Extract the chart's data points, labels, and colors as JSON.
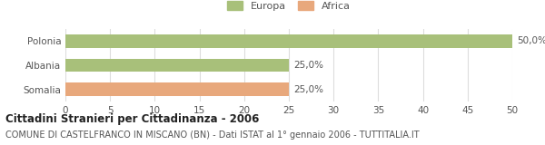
{
  "categories": [
    "Polonia",
    "Albania",
    "Somalia"
  ],
  "values": [
    50.0,
    25.0,
    25.0
  ],
  "colors": [
    "#a8c07a",
    "#a8c07a",
    "#e8a87c"
  ],
  "xlim": [
    0,
    50
  ],
  "xticks": [
    0,
    5,
    10,
    15,
    20,
    25,
    30,
    35,
    40,
    45,
    50
  ],
  "bar_height": 0.55,
  "legend_labels": [
    "Europa",
    "Africa"
  ],
  "legend_colors": [
    "#a8c07a",
    "#e8a87c"
  ],
  "title": "Cittadini Stranieri per Cittadinanza - 2006",
  "subtitle": "COMUNE DI CASTELFRANCO IN MISCANO (BN) - Dati ISTAT al 1° gennaio 2006 - TUTTITALIA.IT",
  "background_color": "#ffffff",
  "grid_color": "#dddddd",
  "title_fontsize": 8.5,
  "subtitle_fontsize": 7.0,
  "tick_fontsize": 7.5,
  "bar_label_fontsize": 7.5,
  "legend_fontsize": 8.0
}
